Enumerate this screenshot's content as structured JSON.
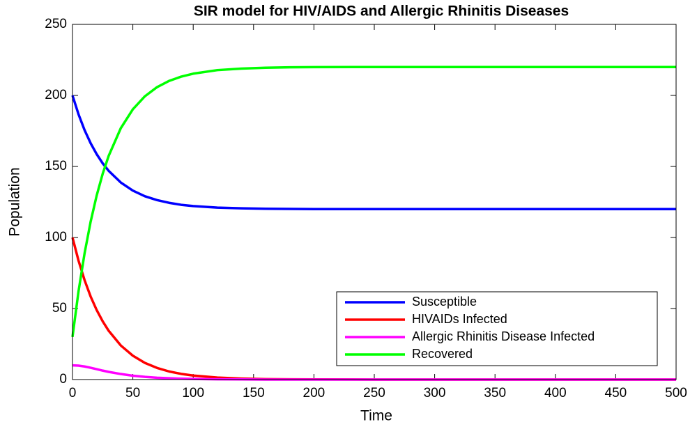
{
  "chart_data": {
    "type": "line",
    "title": "SIR model for HIV/AIDS and Allergic Rhinitis Diseases",
    "xlabel": "Time",
    "ylabel": "Population",
    "x": [
      0,
      5,
      10,
      15,
      20,
      25,
      30,
      40,
      50,
      60,
      70,
      80,
      90,
      100,
      120,
      140,
      160,
      180,
      200,
      250,
      300,
      400,
      500
    ],
    "series": [
      {
        "name": "Susceptible",
        "color": "#0000ff",
        "values": [
          200,
          186.7,
          175.6,
          166.4,
          158.7,
          152.2,
          146.9,
          138.7,
          133.0,
          129.0,
          126.3,
          124.4,
          123.0,
          122.1,
          121.0,
          120.5,
          120.2,
          120.1,
          120,
          120,
          120,
          120,
          120
        ]
      },
      {
        "name": "HIVAIDs Infected",
        "color": "#ff0000",
        "values": [
          100,
          83.7,
          70.0,
          58.5,
          49.0,
          41.0,
          34.3,
          24.0,
          16.8,
          11.7,
          8.2,
          5.7,
          4.0,
          2.8,
          1.4,
          0.7,
          0.3,
          0.2,
          0.1,
          0,
          0,
          0,
          0
        ]
      },
      {
        "name": "Allergic Rhinitis Disease Infected",
        "color": "#ff00ff",
        "values": [
          10,
          9.8,
          9.2,
          8.3,
          7.3,
          6.3,
          5.4,
          3.9,
          2.7,
          1.9,
          1.3,
          0.9,
          0.6,
          0.4,
          0.2,
          0.1,
          0,
          0,
          0,
          0,
          0,
          0,
          0
        ]
      },
      {
        "name": "Recovered",
        "color": "#00ff00",
        "values": [
          30,
          62.1,
          88.8,
          111.0,
          129.4,
          144.8,
          157.5,
          176.9,
          190.2,
          199.4,
          205.8,
          210.2,
          213.2,
          215.3,
          217.8,
          218.9,
          219.5,
          219.8,
          219.9,
          220,
          220,
          220,
          220
        ]
      }
    ],
    "xlim": [
      0,
      500
    ],
    "xticks": [
      0,
      50,
      100,
      150,
      200,
      250,
      300,
      350,
      400,
      450,
      500
    ],
    "ylim": [
      0,
      250
    ],
    "yticks": [
      0,
      50,
      100,
      150,
      200,
      250
    ],
    "legend": "lower right"
  }
}
